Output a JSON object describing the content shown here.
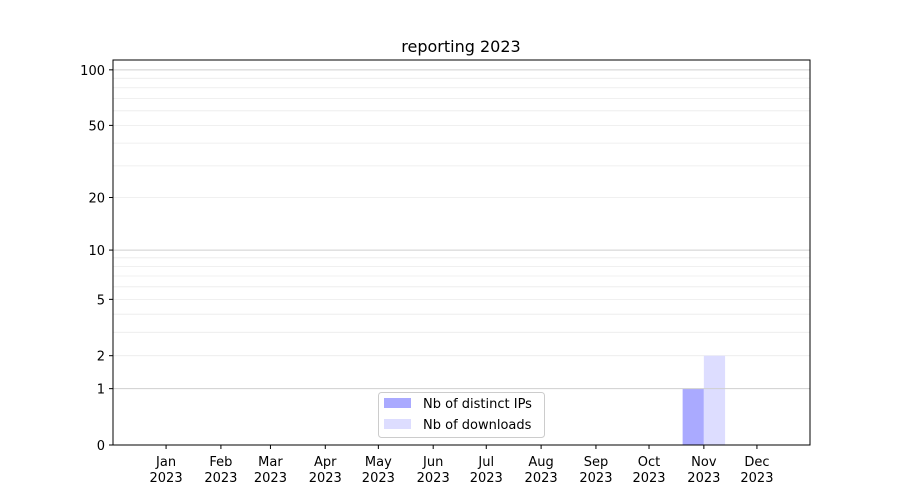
{
  "chart_data": {
    "type": "bar",
    "title": "reporting 2023",
    "xlabel": "",
    "ylabel": "",
    "yscale": "log(1+y)",
    "ylim": [
      0,
      113
    ],
    "yticks": [
      0,
      1,
      2,
      5,
      10,
      20,
      50,
      100
    ],
    "ytick_labels": [
      "0",
      "1",
      "2",
      "5",
      "10",
      "20",
      "50",
      "100"
    ],
    "xlim": [
      "2022-12-02",
      "2023-12-31"
    ],
    "categories": [
      "2023-01-01",
      "2023-02-01",
      "2023-03-01",
      "2023-04-01",
      "2023-05-01",
      "2023-06-01",
      "2023-07-01",
      "2023-08-01",
      "2023-09-01",
      "2023-10-01",
      "2023-11-01",
      "2023-12-01"
    ],
    "xtick_labels": [
      [
        "Jan",
        "2023"
      ],
      [
        "Feb",
        "2023"
      ],
      [
        "Mar",
        "2023"
      ],
      [
        "Apr",
        "2023"
      ],
      [
        "May",
        "2023"
      ],
      [
        "Jun",
        "2023"
      ],
      [
        "Jul",
        "2023"
      ],
      [
        "Aug",
        "2023"
      ],
      [
        "Sep",
        "2023"
      ],
      [
        "Oct",
        "2023"
      ],
      [
        "Nov",
        "2023"
      ],
      [
        "Dec",
        "2023"
      ]
    ],
    "series": [
      {
        "name": "Nb of distinct IPs",
        "color": "#aaaaff",
        "values": [
          0,
          0,
          0,
          0,
          0,
          0,
          0,
          0,
          0,
          0,
          1,
          0
        ]
      },
      {
        "name": "Nb of downloads",
        "color": "#ddddff",
        "values": [
          0,
          0,
          0,
          0,
          0,
          0,
          0,
          0,
          0,
          0,
          2,
          0
        ]
      }
    ],
    "grid": true,
    "legend_position": "lower-center"
  }
}
